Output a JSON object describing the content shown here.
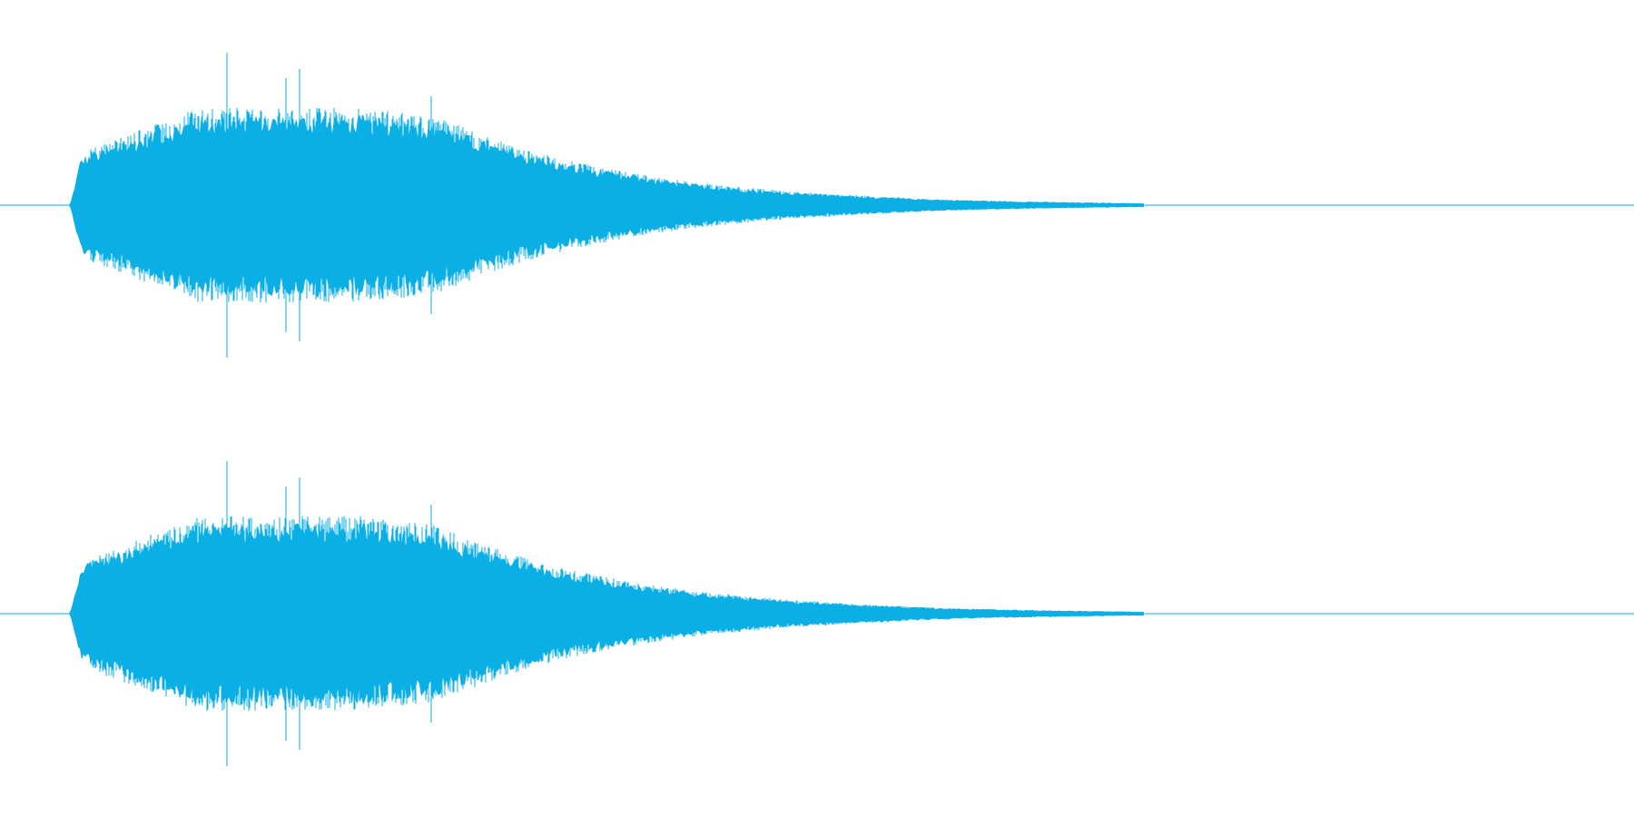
{
  "waveform": {
    "color": "#0aafe6",
    "background": "#ffffff",
    "channels": [
      {
        "channel": "left"
      },
      {
        "channel": "right"
      }
    ]
  }
}
